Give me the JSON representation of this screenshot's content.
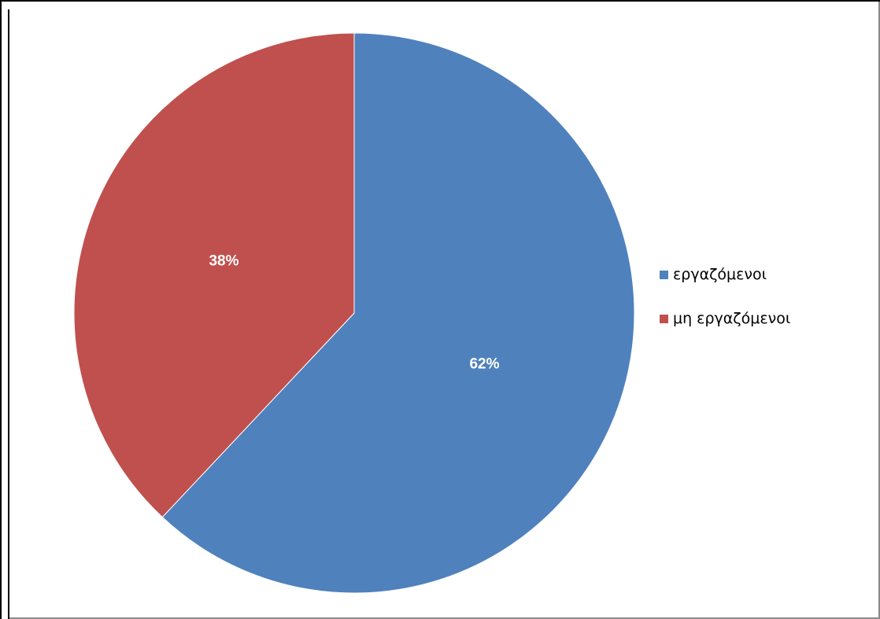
{
  "chart_data": {
    "type": "pie",
    "title": "",
    "categories": [
      "εργαζόμενοι",
      "μη εργαζόμενοι"
    ],
    "values": [
      62,
      38
    ],
    "data_labels": [
      "62%",
      "38%"
    ],
    "colors": [
      "#4f81bd",
      "#c0504d"
    ],
    "legend": "right"
  }
}
